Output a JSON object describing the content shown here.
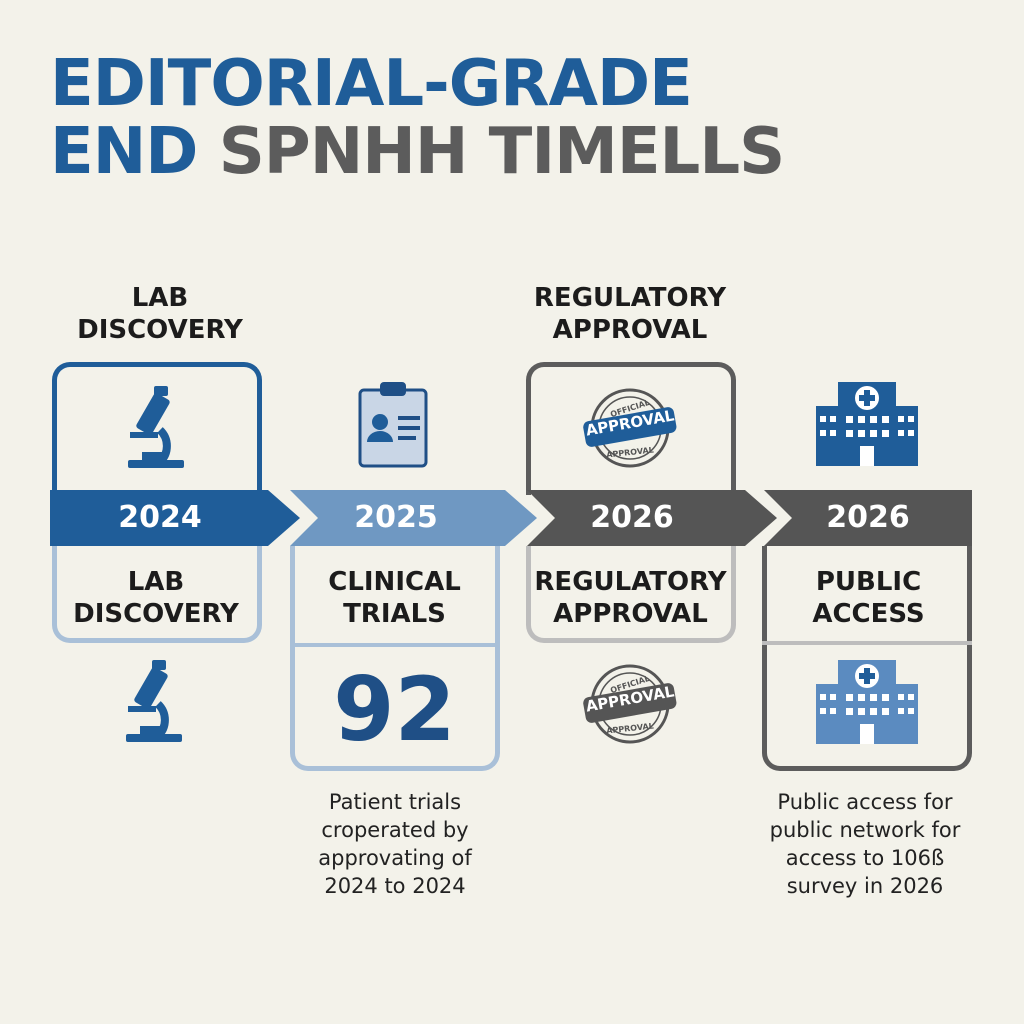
{
  "title": {
    "line1": "EDITORIAL-GRADE",
    "line2_a": "END",
    "line2_b": "SPNHH TIMELLS"
  },
  "top_labels": {
    "lab": "LAB\nDISCOVERY",
    "regulatory": "REGULATORY\nAPPROVAL"
  },
  "stages": [
    {
      "year": "2024",
      "label": "LAB\nDISCOVERY",
      "color": "#1f5d99",
      "icon": "microscope-icon"
    },
    {
      "year": "2025",
      "label": "CLINICAL\nTRIALS",
      "color": "#6f98c2",
      "icon": "clipboard-icon"
    },
    {
      "year": "2026",
      "label": "REGULATORY\nAPPROVAL",
      "color": "#555555",
      "icon": "approval-stamp-icon"
    },
    {
      "year": "2026",
      "label": "PUBLIC\nACCESS",
      "color": "#5a5a5a",
      "icon": "hospital-icon"
    }
  ],
  "stat": {
    "value": "92"
  },
  "stamp": {
    "small_top": "OFFICIAL",
    "main": "APPROVAL",
    "small_bottom": "APPROVAL"
  },
  "descriptions": {
    "trials": "Patient trials\ncroperated by\napprovating of\n2024 to 2024",
    "public": "Public access for\npublic network for\naccess to 106ß\nsurvey in 2026"
  },
  "colors": {
    "blue_dark": "#1f5d99",
    "blue_light": "#6f98c2",
    "gray": "#555555",
    "card_light": "#a9c0d8"
  }
}
